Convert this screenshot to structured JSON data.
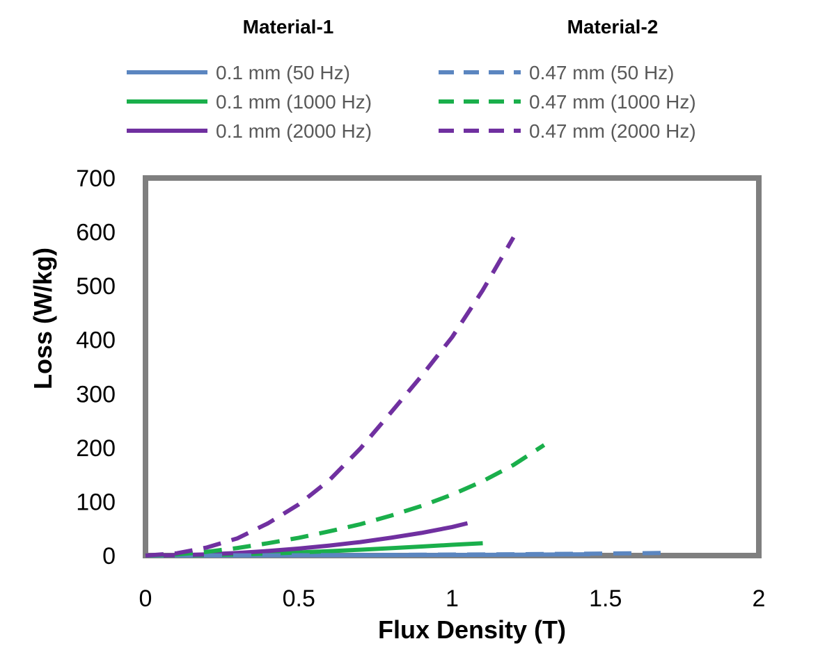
{
  "chart_data": {
    "type": "line",
    "title": "",
    "xlabel": "Flux Density (T)",
    "ylabel": "Loss (W/kg)",
    "xlim": [
      0,
      2
    ],
    "ylim": [
      0,
      700
    ],
    "xticks": [
      0,
      0.5,
      1,
      1.5,
      2
    ],
    "xtick_labels": [
      "0",
      "0.5",
      "1",
      "1.5",
      "2"
    ],
    "yticks": [
      0,
      100,
      200,
      300,
      400,
      500,
      600,
      700
    ],
    "ytick_labels": [
      "0",
      "100",
      "200",
      "300",
      "400",
      "500",
      "600",
      "700"
    ],
    "grid": false,
    "legend_groups": [
      {
        "heading": "Material-1",
        "style": "solid"
      },
      {
        "heading": "Material-2",
        "style": "dashed"
      }
    ],
    "series": [
      {
        "name": "0.1 mm (50 Hz)",
        "group": "Material-1",
        "color": "#5b86c0",
        "dash": "solid",
        "x": [
          0,
          0.2,
          0.4,
          0.6,
          0.8,
          1.0,
          1.2,
          1.4,
          1.45
        ],
        "y": [
          0,
          0.1,
          0.3,
          0.5,
          0.8,
          1.2,
          1.6,
          2.2,
          2.4
        ]
      },
      {
        "name": "0.1 mm (1000 Hz)",
        "group": "Material-1",
        "color": "#1aaf4b",
        "dash": "solid",
        "x": [
          0,
          0.1,
          0.2,
          0.3,
          0.4,
          0.5,
          0.6,
          0.7,
          0.8,
          0.9,
          1.0,
          1.1
        ],
        "y": [
          0,
          0.3,
          1,
          2.2,
          3.8,
          5.8,
          8.2,
          10.8,
          13.7,
          16.8,
          20,
          23
        ]
      },
      {
        "name": "0.1 mm (2000 Hz)",
        "group": "Material-1",
        "color": "#7030a0",
        "dash": "solid",
        "x": [
          0,
          0.1,
          0.2,
          0.3,
          0.4,
          0.5,
          0.6,
          0.7,
          0.8,
          0.9,
          1.0,
          1.05
        ],
        "y": [
          0,
          0.6,
          2.2,
          4.8,
          8.5,
          13,
          18.5,
          25,
          33,
          42,
          53,
          60
        ]
      },
      {
        "name": "0.47 mm (50 Hz)",
        "group": "Material-2",
        "color": "#5b86c0",
        "dash": "dashed",
        "x": [
          0,
          0.3,
          0.6,
          0.9,
          1.2,
          1.5,
          1.68
        ],
        "y": [
          0,
          0.3,
          0.8,
          1.5,
          2.5,
          3.8,
          4.8
        ]
      },
      {
        "name": "0.47 mm (1000 Hz)",
        "group": "Material-2",
        "color": "#1aaf4b",
        "dash": "dashed",
        "x": [
          0,
          0.1,
          0.2,
          0.3,
          0.4,
          0.5,
          0.6,
          0.7,
          0.8,
          0.9,
          1.0,
          1.1,
          1.2,
          1.3
        ],
        "y": [
          0,
          2,
          7,
          14,
          23,
          33,
          45,
          58,
          74,
          92,
          113,
          138,
          168,
          205
        ]
      },
      {
        "name": "0.47 mm (2000 Hz)",
        "group": "Material-2",
        "color": "#7030a0",
        "dash": "dashed",
        "x": [
          0,
          0.1,
          0.2,
          0.3,
          0.4,
          0.5,
          0.6,
          0.7,
          0.8,
          0.9,
          1.0,
          1.1,
          1.2
        ],
        "y": [
          0,
          4,
          15,
          32,
          60,
          95,
          140,
          198,
          265,
          333,
          405,
          492,
          590
        ]
      }
    ]
  }
}
